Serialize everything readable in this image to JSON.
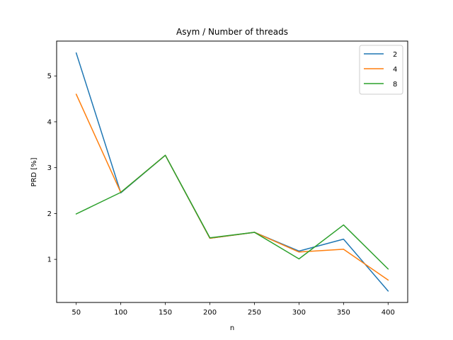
{
  "chart_data": {
    "type": "line",
    "title": "Asym / Number of threads",
    "xlabel": "n",
    "ylabel": "PRD [%]",
    "x": [
      50,
      100,
      150,
      200,
      250,
      300,
      350,
      400
    ],
    "xlim": [
      28,
      422
    ],
    "ylim": [
      0.06,
      5.76
    ],
    "xticks": [
      "50",
      "100",
      "150",
      "200",
      "250",
      "300",
      "350",
      "400"
    ],
    "yticks": [
      "1",
      "2",
      "3",
      "4",
      "5"
    ],
    "series": [
      {
        "name": "2",
        "color": "#1f77b4",
        "values": [
          5.5,
          2.45,
          3.27,
          1.46,
          1.59,
          1.18,
          1.44,
          0.31
        ]
      },
      {
        "name": "4",
        "color": "#ff7f0e",
        "values": [
          4.6,
          2.46,
          3.27,
          1.46,
          1.59,
          1.16,
          1.22,
          0.55
        ]
      },
      {
        "name": "8",
        "color": "#2ca02c",
        "values": [
          1.99,
          2.46,
          3.27,
          1.47,
          1.59,
          1.01,
          1.75,
          0.79
        ]
      }
    ],
    "grid": false,
    "legend": "top-right"
  }
}
